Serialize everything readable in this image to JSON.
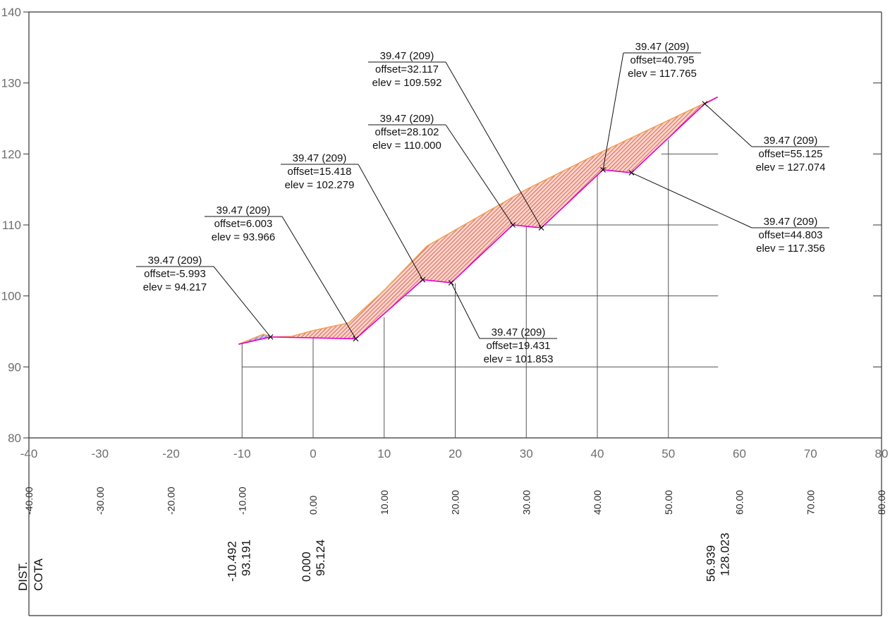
{
  "chart_data": {
    "type": "cross-section",
    "x_range": [
      -40,
      80
    ],
    "y_range": [
      80,
      140
    ],
    "x_ticks": [
      "-40",
      "-30",
      "-20",
      "-10",
      "0",
      "10",
      "20",
      "30",
      "40",
      "50",
      "60",
      "70",
      "80"
    ],
    "y_ticks": [
      "80",
      "90",
      "100",
      "110",
      "120",
      "130",
      "140"
    ],
    "offset_band": [
      "-40.00",
      "-30.00",
      "-20.00",
      "-10.00",
      "0.00",
      "10.00",
      "20.00",
      "30.00",
      "40.00",
      "50.00",
      "60.00",
      "70.00",
      "80.00"
    ],
    "row_labels": {
      "dist": "DIST.",
      "cota": "COTA"
    },
    "bottom_values": [
      {
        "x": -10.492,
        "dist": "-10.492",
        "cota": "93.191"
      },
      {
        "x": 0.0,
        "dist": "0.000",
        "cota": "95.124"
      },
      {
        "x": 56.939,
        "dist": "56.939",
        "cota": "128.023"
      }
    ],
    "ground_profile": [
      [
        -10.492,
        93.191
      ],
      [
        -7,
        94.6
      ],
      [
        -5.993,
        94.217
      ],
      [
        -3,
        94.3
      ],
      [
        0,
        95.124
      ],
      [
        5,
        96.2
      ],
      [
        10,
        100.8
      ],
      [
        16,
        107.0
      ],
      [
        30,
        115.0
      ],
      [
        40,
        120.0
      ],
      [
        56.939,
        128.023
      ]
    ],
    "design_profile": [
      [
        -10.492,
        93.191
      ],
      [
        -5.993,
        94.217
      ],
      [
        6.003,
        93.966
      ],
      [
        15.418,
        102.279
      ],
      [
        19.431,
        101.853
      ],
      [
        28.102,
        110.0
      ],
      [
        32.117,
        109.592
      ],
      [
        40.795,
        117.765
      ],
      [
        44.803,
        117.356
      ],
      [
        55.125,
        127.074
      ],
      [
        56.939,
        128.023
      ]
    ],
    "vertical_lines": [
      {
        "x": -10,
        "top": 93.4
      },
      {
        "x": 0,
        "top": 95.0
      },
      {
        "x": 10,
        "top": 97.0
      },
      {
        "x": 20,
        "top": 101.8
      },
      {
        "x": 30,
        "top": 109.8
      },
      {
        "x": 40,
        "top": 117.5
      },
      {
        "x": 50,
        "top": 122.0
      }
    ],
    "grid_lines": [
      {
        "y": 90,
        "x_from": -10,
        "x_to": 57
      },
      {
        "y": 100,
        "x_from": 13,
        "x_to": 57
      },
      {
        "y": 110,
        "x_from": 28,
        "x_to": 57
      },
      {
        "y": 120,
        "x_from": 49,
        "x_to": 57
      }
    ],
    "points": [
      {
        "x": -5.993,
        "y": 94.217,
        "label": "39.47 (209)",
        "offset": "offset=-5.993",
        "elev": "elev = 94.217"
      },
      {
        "x": 6.003,
        "y": 93.966,
        "label": "39.47 (209)",
        "offset": "offset=6.003",
        "elev": "elev = 93.966"
      },
      {
        "x": 15.418,
        "y": 102.279,
        "label": "39.47 (209)",
        "offset": "offset=15.418",
        "elev": "elev = 102.279"
      },
      {
        "x": 19.431,
        "y": 101.853,
        "label": "39.47 (209)",
        "offset": "offset=19.431",
        "elev": "elev = 101.853"
      },
      {
        "x": 28.102,
        "y": 110.0,
        "label": "39.47 (209)",
        "offset": "offset=28.102",
        "elev": "elev = 110.000"
      },
      {
        "x": 32.117,
        "y": 109.592,
        "label": "39.47 (209)",
        "offset": "offset=32.117",
        "elev": "elev = 109.592"
      },
      {
        "x": 40.795,
        "y": 117.765,
        "label": "39.47 (209)",
        "offset": "offset=40.795",
        "elev": "elev = 117.765"
      },
      {
        "x": 44.803,
        "y": 117.356,
        "label": "39.47 (209)",
        "offset": "offset=44.803",
        "elev": "elev = 117.356"
      },
      {
        "x": 55.125,
        "y": 127.074,
        "label": "39.47 (209)",
        "offset": "offset=55.125",
        "elev": "elev = 127.074"
      }
    ],
    "colors": {
      "cut_fill": "#cc1f2e",
      "fill_fill": "#3a2fa8",
      "design_line": "#e000d0",
      "ground_line": "#f2a055",
      "frame": "#333333",
      "grid": "#555555"
    }
  }
}
